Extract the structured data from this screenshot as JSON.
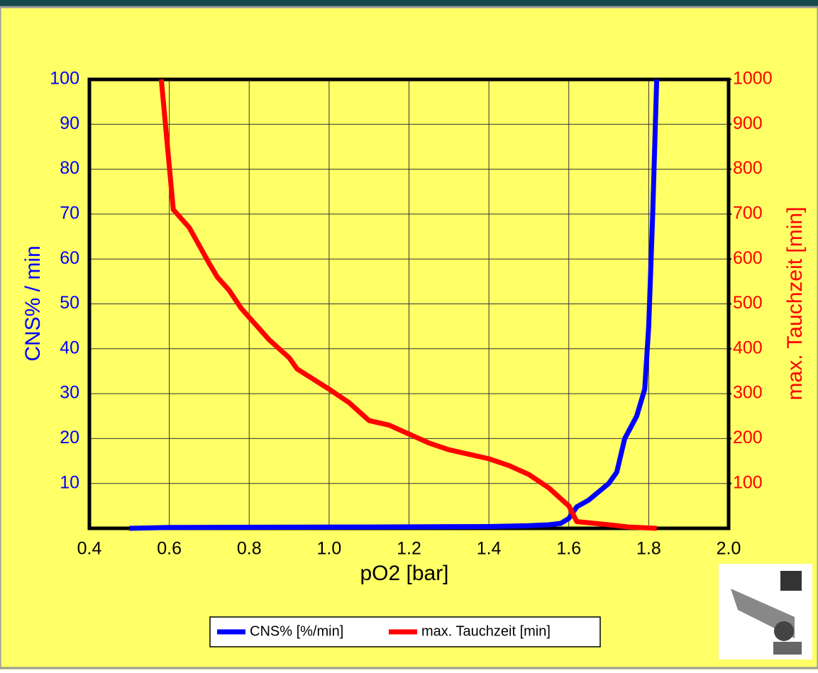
{
  "chart_data": {
    "type": "line",
    "xlabel": "pO2 [bar]",
    "ylabel": "CNS% / min",
    "y2label": "max. Tauchzeit [min]",
    "xlim": [
      0.4,
      2.0
    ],
    "xticks": [
      0.4,
      0.6,
      0.8,
      {
        "value": 1,
        "label": "1.0"
      },
      1.2,
      1.4,
      1.6,
      1.8,
      {
        "value": 2,
        "label": "2.0"
      }
    ],
    "ylim": [
      0,
      100
    ],
    "yticks": [
      10,
      20,
      30,
      40,
      50,
      60,
      70,
      80,
      90,
      100
    ],
    "y2lim": [
      0,
      1000
    ],
    "y2ticks": [
      100,
      200,
      300,
      400,
      500,
      600,
      700,
      800,
      900,
      1000
    ],
    "grid": true,
    "legend": "bottom",
    "series": [
      {
        "name": "CNS% [%/min]",
        "color": "#0000ff",
        "x": [
          0.5,
          0.6,
          1.1,
          1.4,
          1.5,
          1.55,
          1.58,
          1.6,
          1.62,
          1.65,
          1.7,
          1.72,
          1.74,
          1.77,
          1.79,
          1.8,
          1.81,
          1.82
        ],
        "values": [
          0,
          0.2,
          0.3,
          0.4,
          0.6,
          0.8,
          1.1,
          2.2,
          4.8,
          6.3,
          10,
          12.5,
          20,
          25,
          31,
          45,
          70,
          100
        ]
      },
      {
        "name": "max. Tauchzeit [min]",
        "color": "#ff0000",
        "axis": "y2",
        "x": [
          0.58,
          0.61,
          0.65,
          0.7,
          0.72,
          0.75,
          0.78,
          0.85,
          0.9,
          0.92,
          1.0,
          1.05,
          1.1,
          1.15,
          1.2,
          1.25,
          1.3,
          1.35,
          1.4,
          1.45,
          1.5,
          1.55,
          1.6,
          1.62,
          1.7,
          1.75,
          1.82
        ],
        "values": [
          1000,
          710,
          670,
          590,
          560,
          530,
          490,
          420,
          380,
          355,
          310,
          280,
          240,
          230,
          210,
          190,
          175,
          165,
          155,
          140,
          120,
          90,
          50,
          15,
          8,
          3,
          0
        ]
      }
    ]
  }
}
